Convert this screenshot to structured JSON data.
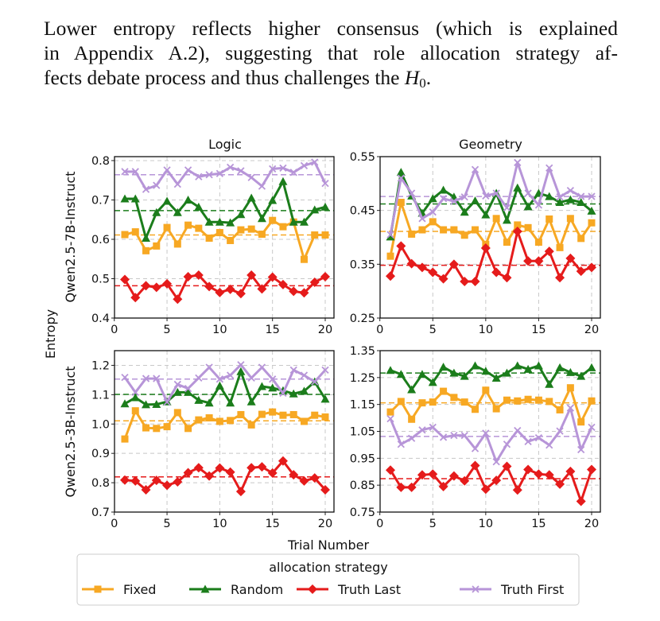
{
  "paragraph": {
    "line1": "Lower entropy reflects higher consensus (which is explained",
    "line2": "in Appendix A.2), suggesting that role allocation strategy af-",
    "line3": "fects debate process and thus challenges the ",
    "math_symbol": "H",
    "math_subscript": "0"
  },
  "figure": {
    "shared_ylabel": "Entropy",
    "shared_xlabel": "Trial Number",
    "column_titles": [
      "Logic",
      "Geometry"
    ],
    "row_labels": [
      "Qwen2.5-7B-Instruct",
      "Qwen2.5-3B-Instruct"
    ],
    "legend": {
      "title": "allocation strategy",
      "position": "bottom-center",
      "entries": [
        {
          "label": "Fixed",
          "color": "#f7a823",
          "marker": "square"
        },
        {
          "label": "Random",
          "color": "#1b7d1b",
          "marker": "triangle"
        },
        {
          "label": "Truth Last",
          "color": "#e51b1b",
          "marker": "diamond"
        },
        {
          "label": "Truth First",
          "color": "#b795d8",
          "marker": "x"
        }
      ]
    }
  },
  "chart_data": [
    {
      "type": "line",
      "title": "Logic",
      "row": "Qwen2.5-7B-Instruct",
      "xlabel": "",
      "ylabel": "",
      "x": [
        1,
        2,
        3,
        4,
        5,
        6,
        7,
        8,
        9,
        10,
        11,
        12,
        13,
        14,
        15,
        16,
        17,
        18,
        19,
        20
      ],
      "xticks": [
        "0",
        "5",
        "10",
        "15",
        "20"
      ],
      "xlim": [
        0,
        20.5
      ],
      "ylim": [
        0.4,
        0.81
      ],
      "yticks": [
        "0.4",
        "0.5",
        "0.6",
        "0.7",
        "0.8"
      ],
      "grid": true,
      "series": [
        {
          "name": "Fixed",
          "mean": 0.611,
          "values": [
            0.612,
            0.619,
            0.571,
            0.583,
            0.63,
            0.588,
            0.636,
            0.628,
            0.603,
            0.617,
            0.597,
            0.624,
            0.626,
            0.613,
            0.648,
            0.632,
            0.644,
            0.549,
            0.611,
            0.611
          ]
        },
        {
          "name": "Random",
          "mean": 0.673,
          "values": [
            0.703,
            0.703,
            0.603,
            0.668,
            0.697,
            0.668,
            0.7,
            0.682,
            0.644,
            0.644,
            0.642,
            0.663,
            0.705,
            0.653,
            0.699,
            0.747,
            0.644,
            0.644,
            0.675,
            0.682
          ]
        },
        {
          "name": "Truth Last",
          "mean": 0.482,
          "values": [
            0.498,
            0.452,
            0.482,
            0.478,
            0.487,
            0.448,
            0.505,
            0.509,
            0.48,
            0.465,
            0.473,
            0.462,
            0.509,
            0.474,
            0.504,
            0.485,
            0.468,
            0.464,
            0.491,
            0.505
          ]
        },
        {
          "name": "Truth First",
          "mean": 0.764,
          "values": [
            0.772,
            0.772,
            0.727,
            0.737,
            0.776,
            0.74,
            0.776,
            0.759,
            0.764,
            0.767,
            0.783,
            0.774,
            0.757,
            0.735,
            0.779,
            0.781,
            0.77,
            0.787,
            0.796,
            0.742
          ]
        }
      ]
    },
    {
      "type": "line",
      "title": "Geometry",
      "row": "Qwen2.5-7B-Instruct",
      "xlabel": "",
      "ylabel": "",
      "x": [
        1,
        2,
        3,
        4,
        5,
        6,
        7,
        8,
        9,
        10,
        11,
        12,
        13,
        14,
        15,
        16,
        17,
        18,
        19,
        20
      ],
      "xticks": [
        "0",
        "5",
        "10",
        "15",
        "20"
      ],
      "xlim": [
        0,
        20.5
      ],
      "ylim": [
        0.25,
        0.55
      ],
      "yticks": [
        "0.25",
        "0.35",
        "0.45",
        "0.55"
      ],
      "grid": true,
      "series": [
        {
          "name": "Fixed",
          "mean": 0.411,
          "values": [
            0.365,
            0.465,
            0.406,
            0.414,
            0.429,
            0.414,
            0.414,
            0.404,
            0.414,
            0.387,
            0.435,
            0.391,
            0.423,
            0.418,
            0.391,
            0.434,
            0.381,
            0.435,
            0.398,
            0.427
          ]
        },
        {
          "name": "Random",
          "mean": 0.462,
          "values": [
            0.401,
            0.521,
            0.477,
            0.445,
            0.472,
            0.488,
            0.475,
            0.447,
            0.468,
            0.442,
            0.482,
            0.432,
            0.492,
            0.457,
            0.482,
            0.476,
            0.465,
            0.47,
            0.465,
            0.449
          ]
        },
        {
          "name": "Truth Last",
          "mean": 0.348,
          "values": [
            0.328,
            0.384,
            0.351,
            0.344,
            0.335,
            0.323,
            0.35,
            0.318,
            0.318,
            0.38,
            0.335,
            0.325,
            0.411,
            0.356,
            0.356,
            0.374,
            0.325,
            0.361,
            0.337,
            0.344
          ]
        },
        {
          "name": "Truth First",
          "mean": 0.476,
          "values": [
            0.405,
            0.51,
            0.482,
            0.435,
            0.447,
            0.472,
            0.467,
            0.475,
            0.526,
            0.477,
            0.482,
            0.455,
            0.539,
            0.482,
            0.46,
            0.529,
            0.475,
            0.487,
            0.476,
            0.476
          ]
        }
      ]
    },
    {
      "type": "line",
      "title": "",
      "row": "Qwen2.5-3B-Instruct",
      "xlabel": "",
      "ylabel": "",
      "x": [
        1,
        2,
        3,
        4,
        5,
        6,
        7,
        8,
        9,
        10,
        11,
        12,
        13,
        14,
        15,
        16,
        17,
        18,
        19,
        20
      ],
      "xticks": [
        "0",
        "5",
        "10",
        "15",
        "20"
      ],
      "xlim": [
        0,
        20.5
      ],
      "ylim": [
        0.7,
        1.25
      ],
      "yticks": [
        "0.7",
        "0.8",
        "0.9",
        "1.0",
        "1.1",
        "1.2"
      ],
      "grid": true,
      "series": [
        {
          "name": "Fixed",
          "mean": 1.011,
          "values": [
            0.949,
            1.045,
            0.987,
            0.985,
            0.991,
            1.039,
            0.985,
            1.014,
            1.021,
            1.009,
            1.012,
            1.032,
            0.997,
            1.033,
            1.041,
            1.03,
            1.032,
            1.009,
            1.03,
            1.024
          ]
        },
        {
          "name": "Random",
          "mean": 1.101,
          "values": [
            1.069,
            1.09,
            1.066,
            1.067,
            1.076,
            1.108,
            1.108,
            1.081,
            1.072,
            1.13,
            1.072,
            1.179,
            1.076,
            1.128,
            1.123,
            1.114,
            1.103,
            1.112,
            1.144,
            1.085
          ]
        },
        {
          "name": "Truth Last",
          "mean": 0.82,
          "values": [
            0.809,
            0.806,
            0.776,
            0.808,
            0.791,
            0.803,
            0.834,
            0.851,
            0.823,
            0.85,
            0.836,
            0.77,
            0.851,
            0.854,
            0.833,
            0.874,
            0.827,
            0.806,
            0.816,
            0.776
          ]
        },
        {
          "name": "Truth First",
          "mean": 1.153,
          "values": [
            1.159,
            1.108,
            1.155,
            1.155,
            1.075,
            1.135,
            1.121,
            1.157,
            1.193,
            1.153,
            1.166,
            1.202,
            1.157,
            1.193,
            1.153,
            1.105,
            1.184,
            1.166,
            1.144,
            1.184
          ]
        }
      ]
    },
    {
      "type": "line",
      "title": "",
      "row": "Qwen2.5-3B-Instruct",
      "xlabel": "",
      "ylabel": "",
      "x": [
        1,
        2,
        3,
        4,
        5,
        6,
        7,
        8,
        9,
        10,
        11,
        12,
        13,
        14,
        15,
        16,
        17,
        18,
        19,
        20
      ],
      "xticks": [
        "0",
        "5",
        "10",
        "15",
        "20"
      ],
      "xlim": [
        0,
        20.5
      ],
      "ylim": [
        0.75,
        1.35
      ],
      "yticks": [
        "0.75",
        "0.85",
        "0.95",
        "1.05",
        "1.15",
        "1.25",
        "1.35"
      ],
      "grid": true,
      "series": [
        {
          "name": "Fixed",
          "mean": 1.156,
          "values": [
            1.122,
            1.161,
            1.095,
            1.156,
            1.159,
            1.199,
            1.176,
            1.159,
            1.132,
            1.203,
            1.134,
            1.166,
            1.163,
            1.169,
            1.166,
            1.161,
            1.13,
            1.212,
            1.085,
            1.163
          ]
        },
        {
          "name": "Random",
          "mean": 1.267,
          "values": [
            1.277,
            1.262,
            1.205,
            1.262,
            1.232,
            1.289,
            1.267,
            1.255,
            1.294,
            1.274,
            1.248,
            1.267,
            1.294,
            1.281,
            1.294,
            1.225,
            1.287,
            1.269,
            1.255,
            1.287
          ]
        },
        {
          "name": "Truth Last",
          "mean": 0.874,
          "values": [
            0.906,
            0.842,
            0.842,
            0.888,
            0.891,
            0.845,
            0.884,
            0.866,
            0.923,
            0.835,
            0.868,
            0.92,
            0.832,
            0.908,
            0.891,
            0.888,
            0.854,
            0.901,
            0.79,
            0.908
          ]
        },
        {
          "name": "Truth First",
          "mean": 1.031,
          "values": [
            1.097,
            1.002,
            1.024,
            1.055,
            1.065,
            1.028,
            1.035,
            1.035,
            0.986,
            1.043,
            0.937,
            1.002,
            1.053,
            1.012,
            1.026,
            0.999,
            1.051,
            1.137,
            0.982,
            1.065
          ]
        }
      ]
    }
  ]
}
